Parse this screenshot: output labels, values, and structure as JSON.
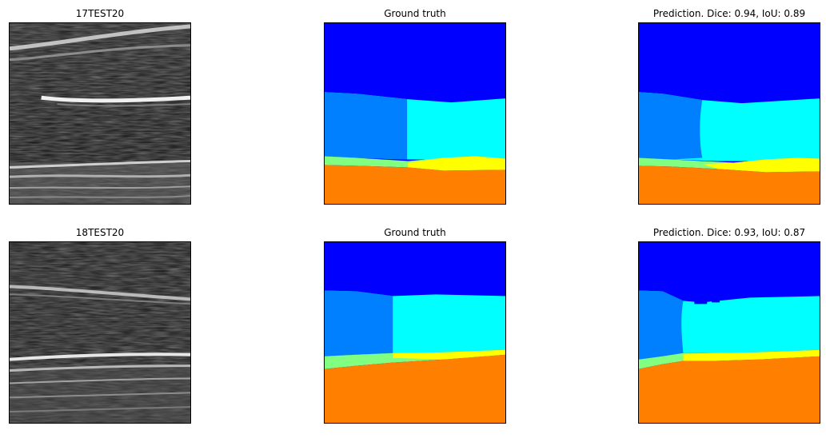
{
  "colors": {
    "class_blue": "#0000ff",
    "class_azure": "#0080ff",
    "class_cyan": "#00ffff",
    "class_green": "#80ff80",
    "class_yellow": "#ffff00",
    "class_orange": "#ff8000"
  },
  "rows": [
    {
      "image_title": "17TEST20",
      "gt_title": "Ground truth",
      "pred_title": "Prediction. Dice: 0.94, IoU: 0.89",
      "dice": 0.94,
      "iou": 0.89
    },
    {
      "image_title": "18TEST20",
      "gt_title": "Ground truth",
      "pred_title": "Prediction. Dice: 0.93, IoU: 0.87",
      "dice": 0.93,
      "iou": 0.87
    }
  ]
}
